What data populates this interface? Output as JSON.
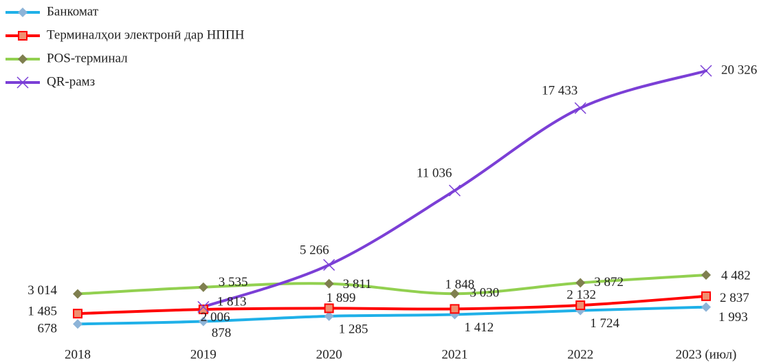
{
  "chart_data": {
    "type": "line",
    "categories": [
      "2018",
      "2019",
      "2020",
      "2021",
      "2022",
      "2023 (июл)"
    ],
    "series": [
      {
        "name": "Банкомат",
        "color": "#1fb0e8",
        "marker": "diamond",
        "values": [
          678,
          878,
          1285,
          1412,
          1724,
          1993
        ],
        "value_labels": [
          "678",
          "878",
          "1 285",
          "1 412",
          "1 724",
          "1 993"
        ]
      },
      {
        "name": "Терминалҳои электронӣ дар НППН",
        "color": "#ff0000",
        "marker": "square",
        "values": [
          1485,
          1813,
          1899,
          1848,
          2132,
          2837
        ],
        "value_labels": [
          "1 485",
          "1 813",
          "1 899",
          "1 848",
          "2 132",
          "2 837"
        ]
      },
      {
        "name": "POS-терминал",
        "color": "#92d050",
        "marker": "diamond",
        "values": [
          3014,
          3535,
          3811,
          3030,
          3872,
          4482
        ],
        "value_labels": [
          "3 014",
          "3 535",
          "3 811",
          "3 030",
          "3 872",
          "4 482"
        ]
      },
      {
        "name": "QR-рамз",
        "color": "#7b3fd6",
        "marker": "x",
        "values": [
          null,
          2006,
          5266,
          11036,
          17433,
          20326
        ],
        "value_labels": [
          null,
          "2 006",
          "5 266",
          "11 036",
          "17 433",
          "20 326"
        ]
      }
    ],
    "legend": "top-left",
    "grid": false
  }
}
